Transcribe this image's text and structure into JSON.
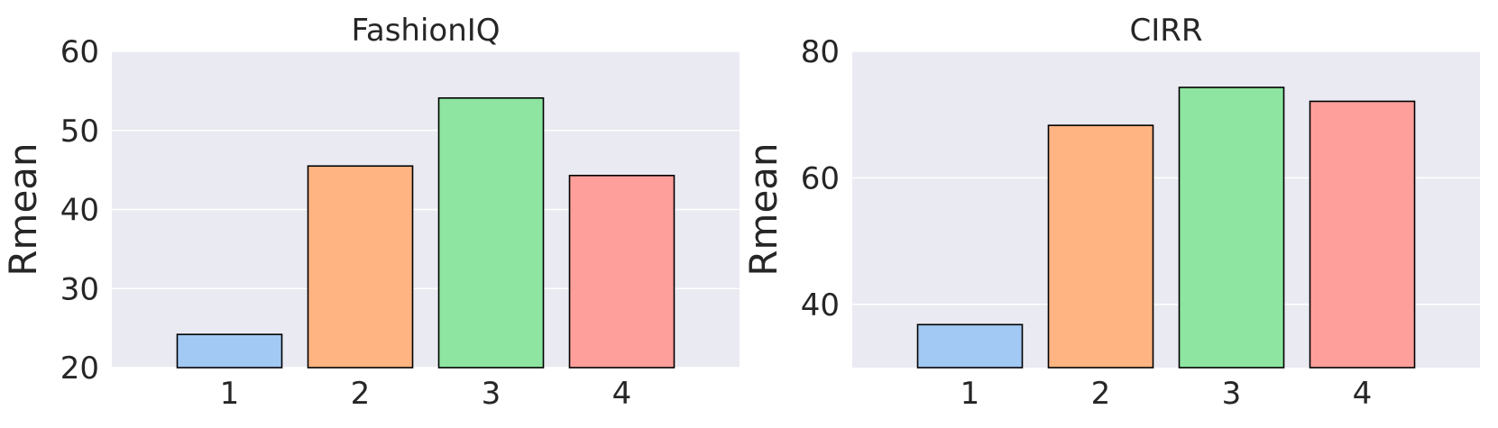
{
  "chart_data": [
    {
      "type": "bar",
      "title": "FashionIQ",
      "xlabel": "",
      "ylabel": "Rmean",
      "categories": [
        "1",
        "2",
        "3",
        "4"
      ],
      "values": [
        24.2,
        45.5,
        54.1,
        44.3
      ],
      "ylim": [
        20,
        60
      ],
      "yticks": [
        20,
        30,
        40,
        50,
        60
      ],
      "grid": true,
      "colors": [
        "#a1c9f4",
        "#ffb482",
        "#8de5a1",
        "#ff9f9b"
      ]
    },
    {
      "type": "bar",
      "title": "CIRR",
      "xlabel": "",
      "ylabel": "Rmean",
      "categories": [
        "1",
        "2",
        "3",
        "4"
      ],
      "values": [
        36.8,
        68.3,
        74.3,
        72.1
      ],
      "ylim": [
        30,
        80
      ],
      "yticks": [
        40,
        60,
        80
      ],
      "grid": true,
      "colors": [
        "#a1c9f4",
        "#ffb482",
        "#8de5a1",
        "#ff9f9b"
      ]
    }
  ],
  "style": {
    "plot_background": "#eaeaf2",
    "grid_color": "#ffffff",
    "bar_edge": "#000000",
    "text_color": "#262626"
  }
}
